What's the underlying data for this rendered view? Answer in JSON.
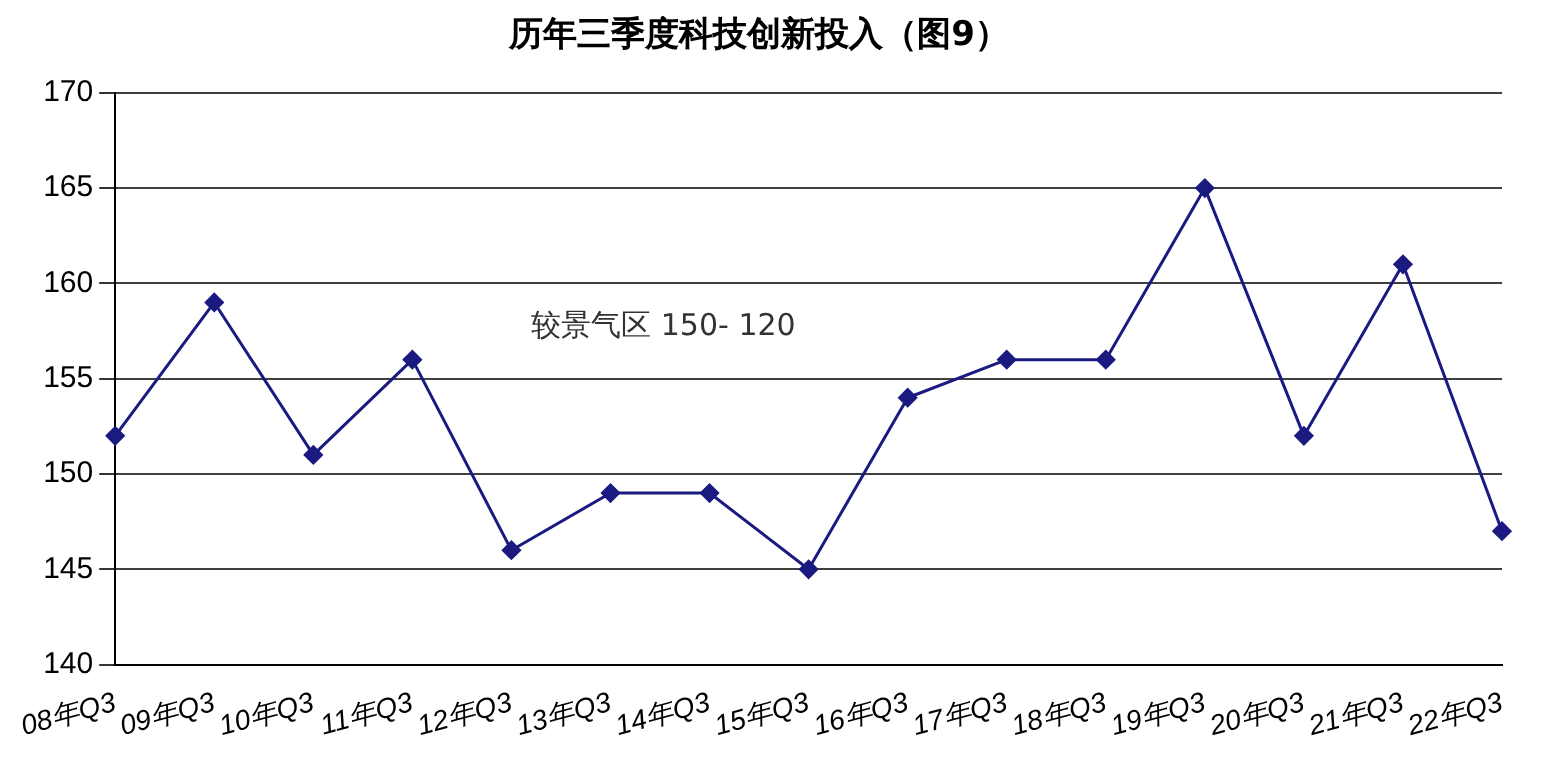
{
  "chart_data": {
    "type": "line",
    "title": "历年三季度科技创新投入（图9）",
    "categories": [
      "08年Q3",
      "09年Q3",
      "10年Q3",
      "11年Q3",
      "12年Q3",
      "13年Q3",
      "14年Q3",
      "15年Q3",
      "16年Q3",
      "17年Q3",
      "18年Q3",
      "19年Q3",
      "20年Q3",
      "21年Q3",
      "22年Q3"
    ],
    "series": [
      {
        "color": "#1a1a80",
        "values": [
          152,
          159,
          151,
          156,
          146,
          149,
          149,
          145,
          154,
          156,
          156,
          165,
          152,
          161,
          147
        ]
      }
    ],
    "ylim": [
      140,
      170
    ],
    "yticks": [
      140,
      145,
      150,
      155,
      160,
      165,
      170
    ],
    "grid": "y",
    "legend": false,
    "marker": "diamond",
    "line_style": "solid",
    "annotations": [
      "较景气区 150- 120"
    ]
  }
}
